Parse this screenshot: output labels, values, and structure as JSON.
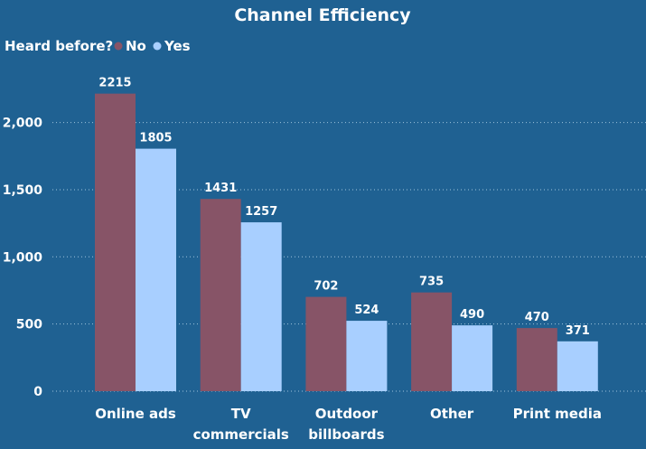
{
  "colors": {
    "background": "#1f6192",
    "no": "#875467",
    "yes": "#a8cfff",
    "text": "#ffffff"
  },
  "chart_data": {
    "type": "bar",
    "title": "Channel Efficiency",
    "legend": {
      "title": "Heard before?",
      "position": "top-left"
    },
    "categories": [
      "Online ads",
      "TV commercials",
      "Outdoor billboards",
      "Other",
      "Print media"
    ],
    "series": [
      {
        "name": "No",
        "values": [
          2215,
          1431,
          702,
          735,
          470
        ]
      },
      {
        "name": "Yes",
        "values": [
          1805,
          1257,
          524,
          490,
          371
        ]
      }
    ],
    "yticks": [
      "0",
      "500",
      "1,000",
      "1,500",
      "2,000"
    ],
    "ylim": [
      0,
      2400
    ],
    "grid": true
  }
}
